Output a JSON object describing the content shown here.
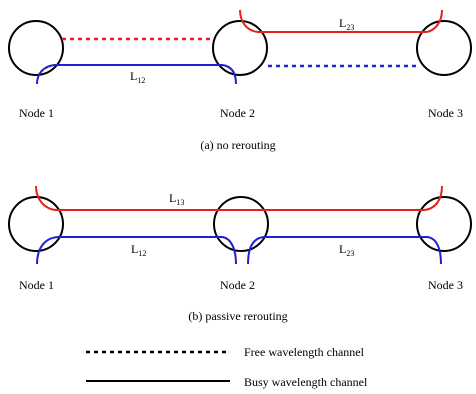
{
  "colors": {
    "red": "#e8201c",
    "blue": "#1f22cc",
    "black": "#000000"
  },
  "panel_a": {
    "caption": "(a) no rerouting",
    "nodes": [
      "Node 1",
      "Node 2",
      "Node 3"
    ],
    "link_12": {
      "base": "L",
      "sub": "12"
    },
    "link_23": {
      "base": "L",
      "sub": "23"
    }
  },
  "panel_b": {
    "caption": "(b) passive rerouting",
    "nodes": [
      "Node 1",
      "Node 2",
      "Node 3"
    ],
    "link_13": {
      "base": "L",
      "sub": "13"
    },
    "link_12": {
      "base": "L",
      "sub": "12"
    },
    "link_23": {
      "base": "L",
      "sub": "23"
    }
  },
  "legend": {
    "free": "Free wavelength channel",
    "busy": "Busy wavelength channel"
  }
}
